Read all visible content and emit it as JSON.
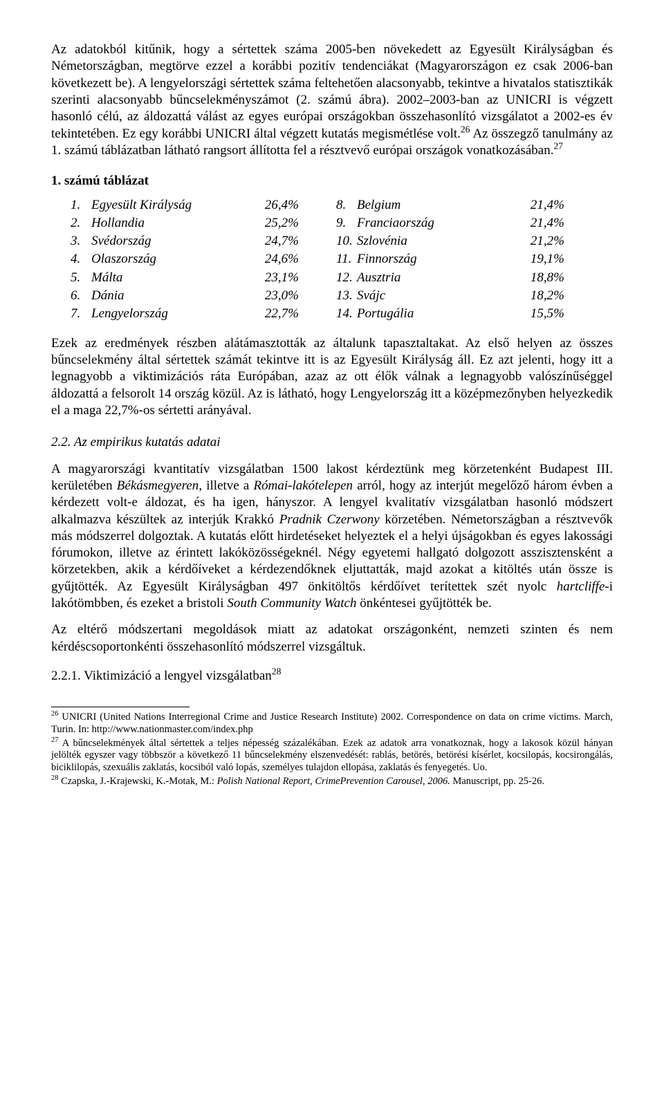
{
  "p1": "Az adatokból kitűnik, hogy a sértettek száma 2005-ben növekedett az Egyesült Királyságban és Németországban, megtörve ezzel a korábbi pozitív tendenciákat (Magyarországon ez csak 2006-ban következett be). A lengyelországi sértettek száma feltehetően alacsonyabb, tekintve a hivatalos statisztikák szerinti alacsonyabb bűncselekményszámot (2. számú ábra).",
  "p2a": "2002–2003-ban az UNICRI is végzett hasonló célú, az áldozattá válást az egyes európai országokban összehasonlító vizsgálatot a 2002-es év tekintetében. Ez egy korábbi UNICRI által végzett kutatás megismétlése volt.",
  "p2_sup1": "26",
  "p2b": " Az összegző tanulmány az 1. számú táblázatban látható rangsort állította fel a résztvevő európai országok vonatkozásában.",
  "p2_sup2": "27",
  "table_title": "1. számú táblázat",
  "table": {
    "left": [
      {
        "n": "1.",
        "c": "Egyesült Királyság",
        "p": "26,4%"
      },
      {
        "n": "2.",
        "c": "Hollandia",
        "p": "25,2%"
      },
      {
        "n": "3.",
        "c": "Svédország",
        "p": "24,7%"
      },
      {
        "n": "4.",
        "c": "Olaszország",
        "p": "24,6%"
      },
      {
        "n": "5.",
        "c": "Málta",
        "p": "23,1%"
      },
      {
        "n": "6.",
        "c": "Dánia",
        "p": "23,0%"
      },
      {
        "n": "7.",
        "c": "Lengyelország",
        "p": "22,7%"
      }
    ],
    "right": [
      {
        "n": "8.",
        "c": "Belgium",
        "p": "21,4%"
      },
      {
        "n": "9.",
        "c": "Franciaország",
        "p": "21,4%"
      },
      {
        "n": "10.",
        "c": "Szlovénia",
        "p": "21,2%"
      },
      {
        "n": "11.",
        "c": "Finnország",
        "p": "19,1%"
      },
      {
        "n": "12.",
        "c": "Ausztria",
        "p": "18,8%"
      },
      {
        "n": "13.",
        "c": "Svájc",
        "p": "18,2%"
      },
      {
        "n": "14.",
        "c": "Portugália",
        "p": "15,5%"
      }
    ]
  },
  "p3": "Ezek az eredmények részben alátámasztották az általunk tapasztaltakat. Az első helyen az összes bűncselekmény által sértettek számát tekintve itt is az Egyesült Királyság áll. Ez azt jelenti, hogy itt a legnagyobb a viktimizációs ráta Európában, azaz az ott élők válnak a legnagyobb valószínűséggel áldozattá a felsorolt 14 ország közül. Az is látható, hogy Lengyelország itt a középmezőnyben helyezkedik el a maga 22,7%-os sértetti arányával.",
  "h22": "2.2. Az empirikus kutatás adatai",
  "p4a": "A magyarországi kvantitatív vizsgálatban 1500 lakost kérdeztünk meg körzetenként Budapest III. kerületében ",
  "p4_i1": "Békásmegyeren",
  "p4b": ", illetve a ",
  "p4_i2": "Római-lakótelepen",
  "p4c": " arról, hogy az interjút megelőző három évben a kérdezett volt-e áldozat, és ha igen, hányszor. A lengyel kvalitatív vizsgálatban hasonló módszert alkalmazva készültek az interjúk Krakkó ",
  "p4_i3": "Pradnik Czerwony",
  "p4d": " körzetében. Németországban a résztvevők más módszerrel dolgoztak. A kutatás előtt hirdetéseket helyeztek el a helyi újságokban és egyes lakossági fórumokon, illetve az érintett lakóközösségeknél. Négy egyetemi hallgató dolgozott asszisztensként a körzetekben, akik a kérdőíveket a kérdezendőknek eljuttatták, majd azokat a kitöltés után össze is gyűjtötték. Az Egyesült Királyságban 497 önkitöltős kérdőívet terítettek szét nyolc ",
  "p4_i4": "hartcliffe",
  "p4e": "-i lakótömbben, és ezeket a bristoli ",
  "p4_i5": "South Community Watch",
  "p4f": " önkéntesei gyűjtötték be.",
  "p5": "Az eltérő módszertani megoldások miatt az adatokat országonként, nemzeti szinten és nem kérdéscsoportonkénti összehasonlító módszerrel vizsgáltuk.",
  "h221a": "2.2.1. Viktimizáció a lengyel vizsgálatban",
  "h221_sup": "28",
  "fn26_sup": "26",
  "fn26": " UNICRI (United Nations Interregional Crime and Justice Research Institute) 2002. Correspondence on data on crime victims. March, Turin. In: http://www.nationmaster.com/index.php",
  "fn27_sup": "27",
  "fn27": " A bűncselekmények által sértettek a teljes népesség százalékában. Ezek az adatok arra vonatkoznak, hogy a lakosok közül hányan jelölték egyszer vagy többször a következő 11 bűncselekmény elszenvedését: rablás, betörés, betörési kísérlet, kocsilopás, kocsirongálás, biciklilopás, szexuális zaklatás, kocsiból való lopás, személyes tulajdon ellopása, zaklatás és fenyegetés. Uo.",
  "fn28_sup": "28",
  "fn28a": " Czapska, J.-Krajewski, K.-Motak, M.: ",
  "fn28_i": "Polish National Report, CrimePrevention Carousel, 2006.",
  "fn28b": " Manuscript, pp. 25-26."
}
